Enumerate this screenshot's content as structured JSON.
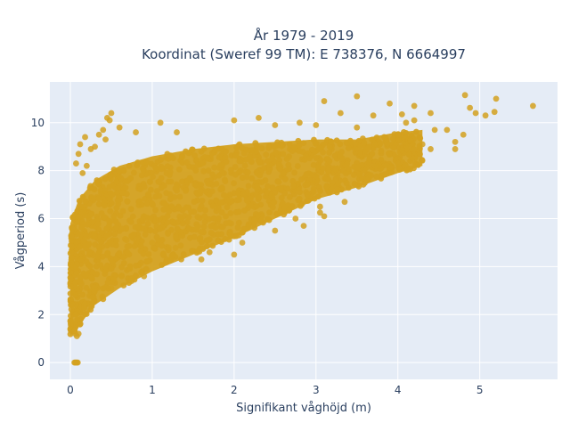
{
  "chart_data": {
    "type": "scatter",
    "title_line1": "År 1979 - 2019",
    "title_line2": "Koordinat (Sweref 99 TM): E 738376, N 6664997",
    "xlabel": "Signifikant våghöjd (m)",
    "ylabel": "Vågperiod (s)",
    "xlim": [
      -0.25,
      5.95
    ],
    "ylim": [
      -0.7,
      11.7
    ],
    "x_ticks": [
      0,
      1,
      2,
      3,
      4,
      5
    ],
    "y_ticks": [
      0,
      2,
      4,
      6,
      8,
      10
    ],
    "grid": true,
    "legend": false,
    "plot_bg_color": "#e5ecf6",
    "grid_color": "#ffffff",
    "point_color": "#d4a11e",
    "points_note_empty": "",
    "density_band": {
      "x_range": [
        0.0,
        4.3
      ],
      "lower_curve": [
        [
          0.0,
          1.1
        ],
        [
          0.1,
          1.5
        ],
        [
          0.3,
          2.4
        ],
        [
          0.6,
          3.1
        ],
        [
          1.0,
          3.8
        ],
        [
          1.5,
          4.5
        ],
        [
          2.0,
          5.2
        ],
        [
          2.5,
          6.0
        ],
        [
          3.0,
          6.8
        ],
        [
          3.5,
          7.3
        ],
        [
          4.0,
          7.9
        ],
        [
          4.3,
          8.2
        ]
      ],
      "upper_curve": [
        [
          0.0,
          5.8
        ],
        [
          0.1,
          6.8
        ],
        [
          0.3,
          7.6
        ],
        [
          0.6,
          8.2
        ],
        [
          1.0,
          8.6
        ],
        [
          1.5,
          8.9
        ],
        [
          2.0,
          9.1
        ],
        [
          2.5,
          9.2
        ],
        [
          3.0,
          9.3
        ],
        [
          3.5,
          9.3
        ],
        [
          4.0,
          9.6
        ],
        [
          4.3,
          9.7
        ]
      ]
    },
    "points": [
      [
        0.05,
        0.0
      ],
      [
        0.06,
        0.0
      ],
      [
        0.07,
        0.0
      ],
      [
        0.08,
        0.0
      ],
      [
        0.09,
        0.0
      ],
      [
        0.05,
        1.3
      ],
      [
        0.06,
        1.2
      ],
      [
        0.08,
        1.1
      ],
      [
        0.1,
        1.2
      ],
      [
        0.43,
        9.3
      ],
      [
        0.48,
        10.1
      ],
      [
        0.45,
        10.2
      ],
      [
        0.5,
        10.4
      ],
      [
        0.35,
        9.5
      ],
      [
        0.4,
        9.7
      ],
      [
        0.1,
        8.7
      ],
      [
        0.07,
        8.3
      ],
      [
        0.12,
        9.1
      ],
      [
        0.18,
        9.4
      ],
      [
        0.6,
        9.8
      ],
      [
        0.8,
        9.6
      ],
      [
        1.1,
        10.0
      ],
      [
        1.3,
        9.6
      ],
      [
        2.0,
        10.1
      ],
      [
        2.3,
        10.2
      ],
      [
        2.5,
        9.9
      ],
      [
        2.8,
        10.0
      ],
      [
        3.0,
        9.9
      ],
      [
        3.3,
        10.4
      ],
      [
        3.5,
        9.8
      ],
      [
        3.7,
        10.3
      ],
      [
        3.5,
        11.1
      ],
      [
        3.1,
        10.9
      ],
      [
        3.9,
        10.8
      ],
      [
        4.2,
        10.7
      ],
      [
        4.1,
        10.0
      ],
      [
        4.05,
        10.35
      ],
      [
        4.2,
        10.1
      ],
      [
        4.4,
        10.4
      ],
      [
        4.45,
        9.7
      ],
      [
        4.6,
        9.7
      ],
      [
        4.7,
        9.2
      ],
      [
        4.8,
        9.5
      ],
      [
        4.88,
        10.62
      ],
      [
        4.82,
        11.15
      ],
      [
        4.95,
        10.4
      ],
      [
        5.07,
        10.3
      ],
      [
        5.18,
        10.45
      ],
      [
        5.2,
        11.0
      ],
      [
        5.65,
        10.7
      ],
      [
        4.4,
        8.9
      ],
      [
        4.7,
        8.9
      ],
      [
        4.3,
        9.1
      ],
      [
        3.35,
        6.7
      ],
      [
        3.05,
        6.5
      ],
      [
        2.75,
        6.0
      ],
      [
        2.85,
        5.7
      ],
      [
        3.1,
        6.1
      ],
      [
        3.05,
        6.25
      ],
      [
        2.5,
        5.5
      ],
      [
        2.0,
        4.5
      ],
      [
        2.1,
        5.0
      ],
      [
        1.6,
        4.3
      ],
      [
        1.7,
        4.6
      ],
      [
        0.15,
        7.9
      ],
      [
        0.2,
        8.2
      ],
      [
        0.25,
        8.9
      ],
      [
        0.3,
        9.0
      ],
      [
        1.0,
        5.0
      ],
      [
        1.2,
        4.8
      ],
      [
        0.9,
        3.6
      ],
      [
        0.5,
        3.1
      ]
    ]
  }
}
